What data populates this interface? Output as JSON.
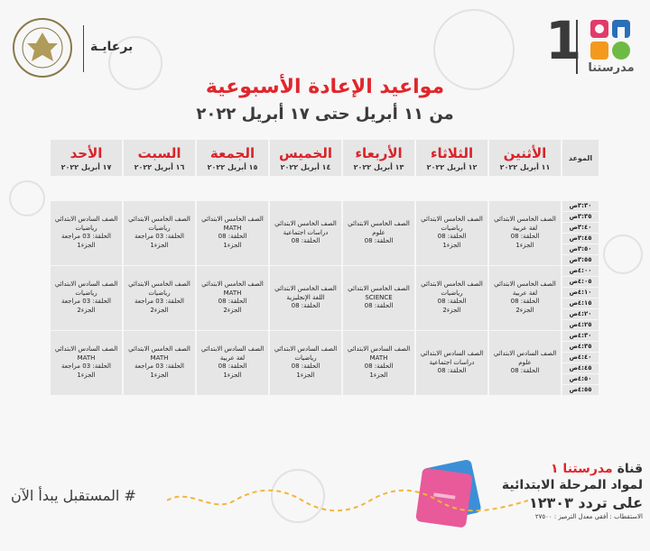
{
  "header": {
    "logo_text": "مدرستنا",
    "logo_number": "1",
    "sponsor_label": "برعايـة",
    "title": "مواعيد الإعادة الأسبوعية",
    "subtitle": "من ١١ أبريل حتى ١٧ أبريل ٢٠٢٢"
  },
  "table": {
    "time_header": "الموعد",
    "days": [
      {
        "name": "الأحد",
        "date": "١٧ أبريل ٢٠٢٢"
      },
      {
        "name": "السبت",
        "date": "١٦ أبريل ٢٠٢٢"
      },
      {
        "name": "الجمعة",
        "date": "١٥ أبريل ٢٠٢٢"
      },
      {
        "name": "الخميس",
        "date": "١٤ أبريل ٢٠٢٢"
      },
      {
        "name": "الأربعاء",
        "date": "١٣ أبريل ٢٠٢٢"
      },
      {
        "name": "الثلاثاء",
        "date": "١٢ أبريل ٢٠٢٢"
      },
      {
        "name": "الأثنين",
        "date": "١١ أبريل ٢٠٢٢"
      }
    ],
    "times": [
      "٣:٣٠ص",
      "٣:٣٥ص",
      "٣:٤٠ص",
      "٣:٤٥ص",
      "٣:٥٠ص",
      "٣:٥٥ص",
      "٤:٠٠ص",
      "٤:٠٥ص",
      "٤:١٠ص",
      "٤:١٥ص",
      "٤:٢٠ص",
      "٤:٢٥ص",
      "٤:٣٠ص",
      "٤:٣٥ص",
      "٤:٤٠ص",
      "٤:٤٥ص",
      "٤:٥٠ص",
      "٤:٥٥ص"
    ],
    "blocks": [
      [
        [
          "الصف السادس الابتدائي",
          "رياضيات",
          "الحلقة: 03 مراجعة",
          "الجزء1"
        ],
        [
          "الصف الخامس الابتدائي",
          "رياضيات",
          "الحلقة: 03 مراجعة",
          "الجزء1"
        ],
        [
          "الصف الخامس الابتدائي",
          "MATH",
          "الحلقة: 08",
          "الجزء1"
        ],
        [
          "الصف الخامس الابتدائي",
          "دراسات اجتماعية",
          "الحلقة: 08"
        ],
        [
          "الصف الخامس الابتدائي",
          "علوم",
          "الحلقة: 08"
        ],
        [
          "الصف الخامس الابتدائي",
          "رياضيات",
          "الحلقة: 08",
          "الجزء1"
        ],
        [
          "الصف الخامس الابتدائي",
          "لغة عربية",
          "الحلقة: 08",
          "الجزء1"
        ]
      ],
      [
        [
          "الصف السادس الابتدائي",
          "رياضيات",
          "الحلقة: 03 مراجعة",
          "الجزء2"
        ],
        [
          "الصف الخامس الابتدائي",
          "رياضيات",
          "الحلقة: 03 مراجعة",
          "الجزء2"
        ],
        [
          "الصف الخامس الابتدائي",
          "MATH",
          "الحلقة: 08",
          "الجزء2"
        ],
        [
          "الصف الخامس الابتدائي",
          "اللغة الإنجليزية",
          "الحلقة: 08"
        ],
        [
          "الصف الخامس الابتدائي",
          "SCIENCE",
          "الحلقة: 08"
        ],
        [
          "الصف الخامس الابتدائي",
          "رياضيات",
          "الحلقة: 08",
          "الجزء2"
        ],
        [
          "الصف الخامس الابتدائي",
          "لغة عربية",
          "الحلقة: 08",
          "الجزء2"
        ]
      ],
      [
        [
          "الصف السادس الابتدائي",
          "MATH",
          "الحلقة: 03 مراجعة",
          "الجزء1"
        ],
        [
          "الصف الخامس الابتدائي",
          "MATH",
          "الحلقة: 03 مراجعة",
          "الجزء1"
        ],
        [
          "الصف السادس الابتدائي",
          "لغة عربية",
          "الحلقة: 08",
          "الجزء1"
        ],
        [
          "الصف السادس الابتدائي",
          "رياضيات",
          "الحلقة: 08",
          "الجزء1"
        ],
        [
          "الصف السادس الابتدائي",
          "MATH",
          "الحلقة: 08",
          "الجزء1"
        ],
        [
          "الصف السادس الابتدائي",
          "دراسات اجتماعية",
          "الحلقة: 08"
        ],
        [
          "الصف السادس الابتدائي",
          "علوم",
          "الحلقة: 08"
        ]
      ]
    ]
  },
  "footer": {
    "channel_prefix": "قناة",
    "channel_name": "مدرستنا ١",
    "channel_desc": "لمواد المرحلة الابتدائية",
    "frequency": "على تردد ١٢٣٠٣",
    "reception": "الاستقطاب : أفقي معدل الترميز : ٢٧٥٠٠",
    "tagline": "# المستقبل يبدأ الآن"
  },
  "colors": {
    "accent_red": "#e0262c",
    "cell_gray": "#e6e6e6",
    "logo_blue": "#2a6fb8",
    "logo_orange": "#f39a1e",
    "logo_pink": "#e23b6a"
  }
}
